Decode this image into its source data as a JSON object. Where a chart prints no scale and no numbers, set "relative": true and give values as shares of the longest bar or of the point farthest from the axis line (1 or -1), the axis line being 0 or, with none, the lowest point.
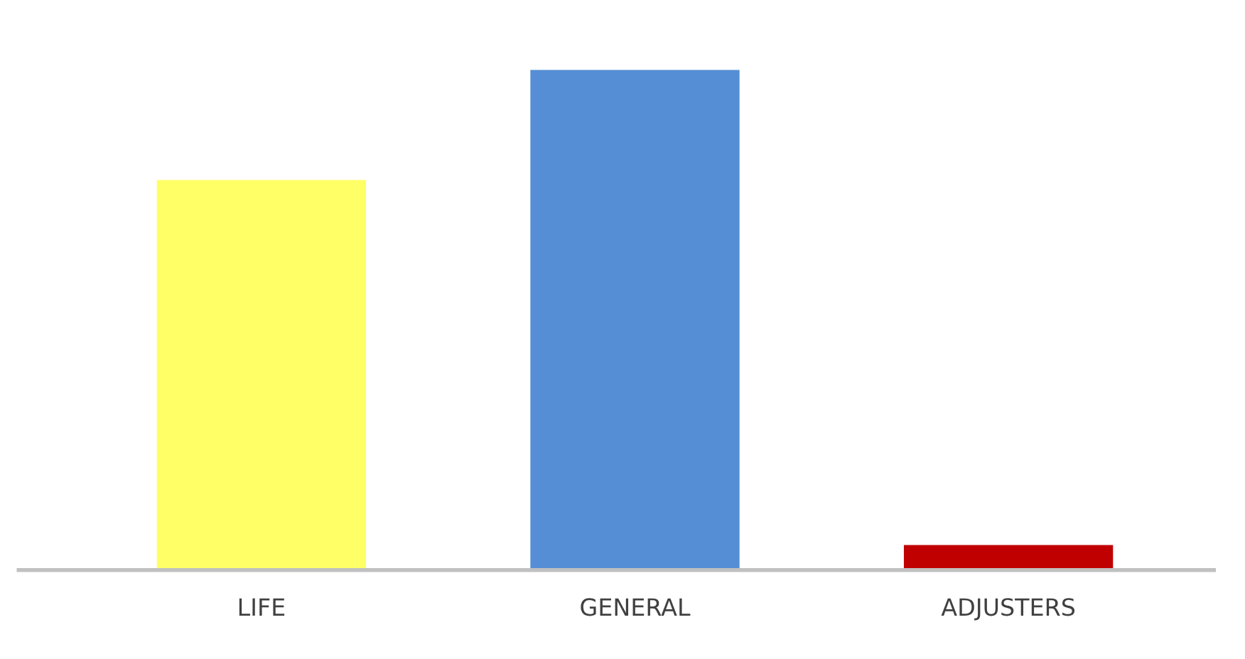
{
  "chart_data": {
    "type": "bar",
    "relative": true,
    "categories": [
      "LIFE",
      "GENERAL",
      "ADJUSTERS"
    ],
    "values": [
      0.78,
      1,
      0.05
    ],
    "colors": [
      "#ffff66",
      "#558ed5",
      "#c00000"
    ],
    "grid": false,
    "legend": false
  }
}
